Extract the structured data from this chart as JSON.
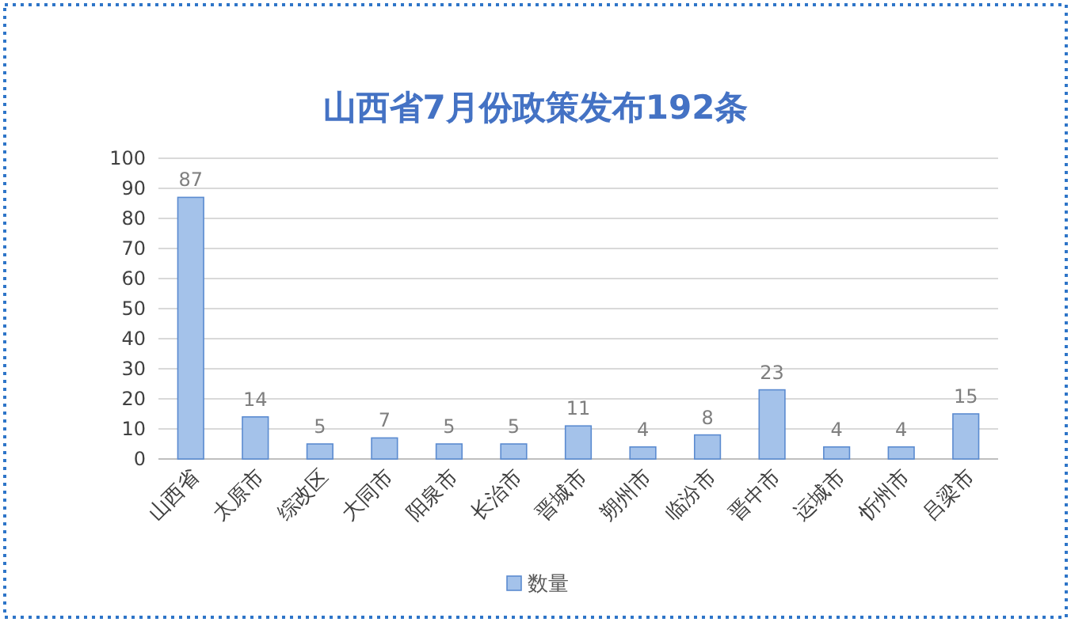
{
  "chart_data": {
    "type": "bar",
    "title": "山西省7月份政策发布192条",
    "categories": [
      "山西省",
      "太原市",
      "综改区",
      "大同市",
      "阳泉市",
      "长治市",
      "晋城市",
      "朔州市",
      "临汾市",
      "晋中市",
      "运城市",
      "忻州市",
      "吕梁市"
    ],
    "series": [
      {
        "name": "数量",
        "color": "#a4c2ea",
        "values": [
          87,
          14,
          5,
          7,
          5,
          5,
          11,
          4,
          8,
          23,
          4,
          4,
          15
        ]
      }
    ],
    "ylim": [
      0,
      100
    ],
    "yticks": [
      0,
      10,
      20,
      30,
      40,
      50,
      60,
      70,
      80,
      90,
      100
    ],
    "grid": "y",
    "legend": "bottom",
    "data_labels": true
  }
}
